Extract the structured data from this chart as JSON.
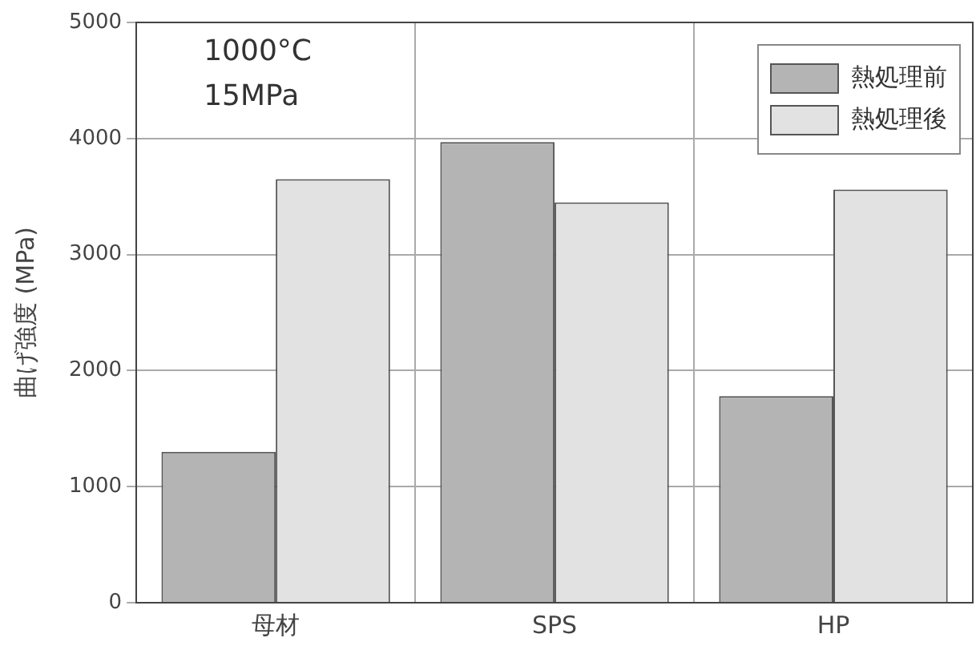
{
  "chart_data": {
    "type": "bar",
    "ylabel": "曲げ強度 (MPa)",
    "categories": [
      "母材",
      "SPS",
      "HP"
    ],
    "series": [
      {
        "name": "熱処理前",
        "color": "#b4b4b4",
        "values": [
          1300,
          3970,
          1780
        ]
      },
      {
        "name": "熱処理後",
        "color": "#e2e2e2",
        "values": [
          3650,
          3450,
          3560
        ]
      }
    ],
    "ylim": [
      0,
      5000
    ],
    "yticks": [
      0,
      1000,
      2000,
      3000,
      4000,
      5000
    ],
    "grid": true,
    "legend": "top right",
    "annotations": [
      "1000°C",
      "15MPa"
    ]
  }
}
